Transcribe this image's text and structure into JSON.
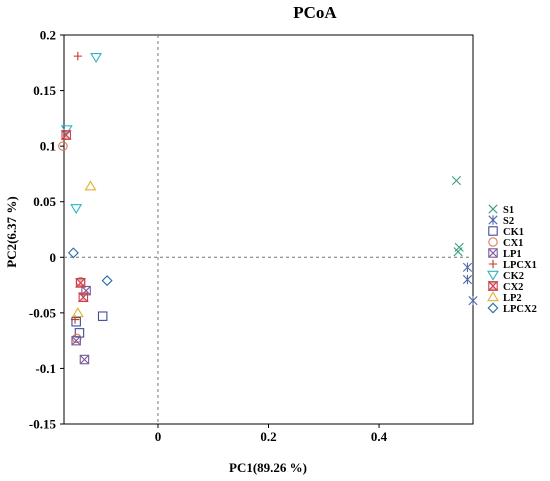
{
  "chart_data": {
    "type": "scatter",
    "title": "PCoA",
    "xlabel": "PC1(89.26 %)",
    "ylabel": "PC2(6.37 %)",
    "xlim": [
      -0.17,
      0.57
    ],
    "ylim": [
      -0.15,
      0.2
    ],
    "xticks": [
      0,
      0.2,
      0.4
    ],
    "xtick_labels": [
      "0",
      "0.2",
      "0.4"
    ],
    "yticks": [
      0.2,
      0.15,
      0.1,
      0.05,
      0,
      -0.05,
      -0.1,
      -0.15
    ],
    "ytick_labels": [
      "0.2",
      "0.15",
      "0.1",
      "0.05",
      "0",
      "-0.05",
      "-0.1",
      "-0.15"
    ],
    "reference_lines": {
      "x": 0,
      "y": 0
    },
    "grid": false,
    "legend_position": "right, outside plot",
    "series": [
      {
        "name": "S1",
        "marker": "x",
        "color": "#3aa07a",
        "points": [
          [
            0.54,
            0.069
          ],
          [
            0.545,
            0.009
          ],
          [
            0.543,
            0.005
          ]
        ]
      },
      {
        "name": "S2",
        "marker": "asterisk",
        "color": "#5468a8",
        "points": [
          [
            0.56,
            -0.009
          ],
          [
            0.56,
            -0.02
          ],
          [
            0.57,
            -0.039
          ]
        ]
      },
      {
        "name": "CK1",
        "marker": "square",
        "color": "#3f4d9a",
        "points": [
          [
            -0.1,
            -0.053
          ],
          [
            -0.142,
            -0.068
          ],
          [
            -0.148,
            -0.058
          ]
        ]
      },
      {
        "name": "CX1",
        "marker": "circle",
        "color": "#e07a5a",
        "points": [
          [
            -0.172,
            0.1
          ],
          [
            -0.14,
            -0.022
          ],
          [
            -0.147,
            -0.073
          ]
        ]
      },
      {
        "name": "LP1",
        "marker": "square-x",
        "color": "#7a5a9a",
        "points": [
          [
            -0.13,
            -0.03
          ],
          [
            -0.148,
            -0.075
          ],
          [
            -0.133,
            -0.092
          ]
        ]
      },
      {
        "name": "LPCX1",
        "marker": "plus",
        "color": "#c0392b",
        "points": [
          [
            -0.145,
            0.181
          ],
          [
            -0.15,
            -0.056
          ]
        ]
      },
      {
        "name": "CK2",
        "marker": "triangle-down",
        "color": "#2bb5c0",
        "points": [
          [
            -0.112,
            0.18
          ],
          [
            -0.165,
            0.115
          ],
          [
            -0.148,
            0.044
          ]
        ]
      },
      {
        "name": "CX2",
        "marker": "hourglass",
        "color": "#c8404a",
        "points": [
          [
            -0.166,
            0.11
          ],
          [
            -0.14,
            -0.023
          ],
          [
            -0.135,
            -0.036
          ]
        ]
      },
      {
        "name": "LP2",
        "marker": "triangle-up",
        "color": "#e0b030",
        "points": [
          [
            -0.122,
            0.064
          ],
          [
            -0.145,
            -0.05
          ]
        ]
      },
      {
        "name": "LPCX2",
        "marker": "diamond",
        "color": "#2a6aa8",
        "points": [
          [
            -0.153,
            0.004
          ],
          [
            -0.092,
            -0.021
          ]
        ]
      }
    ]
  }
}
